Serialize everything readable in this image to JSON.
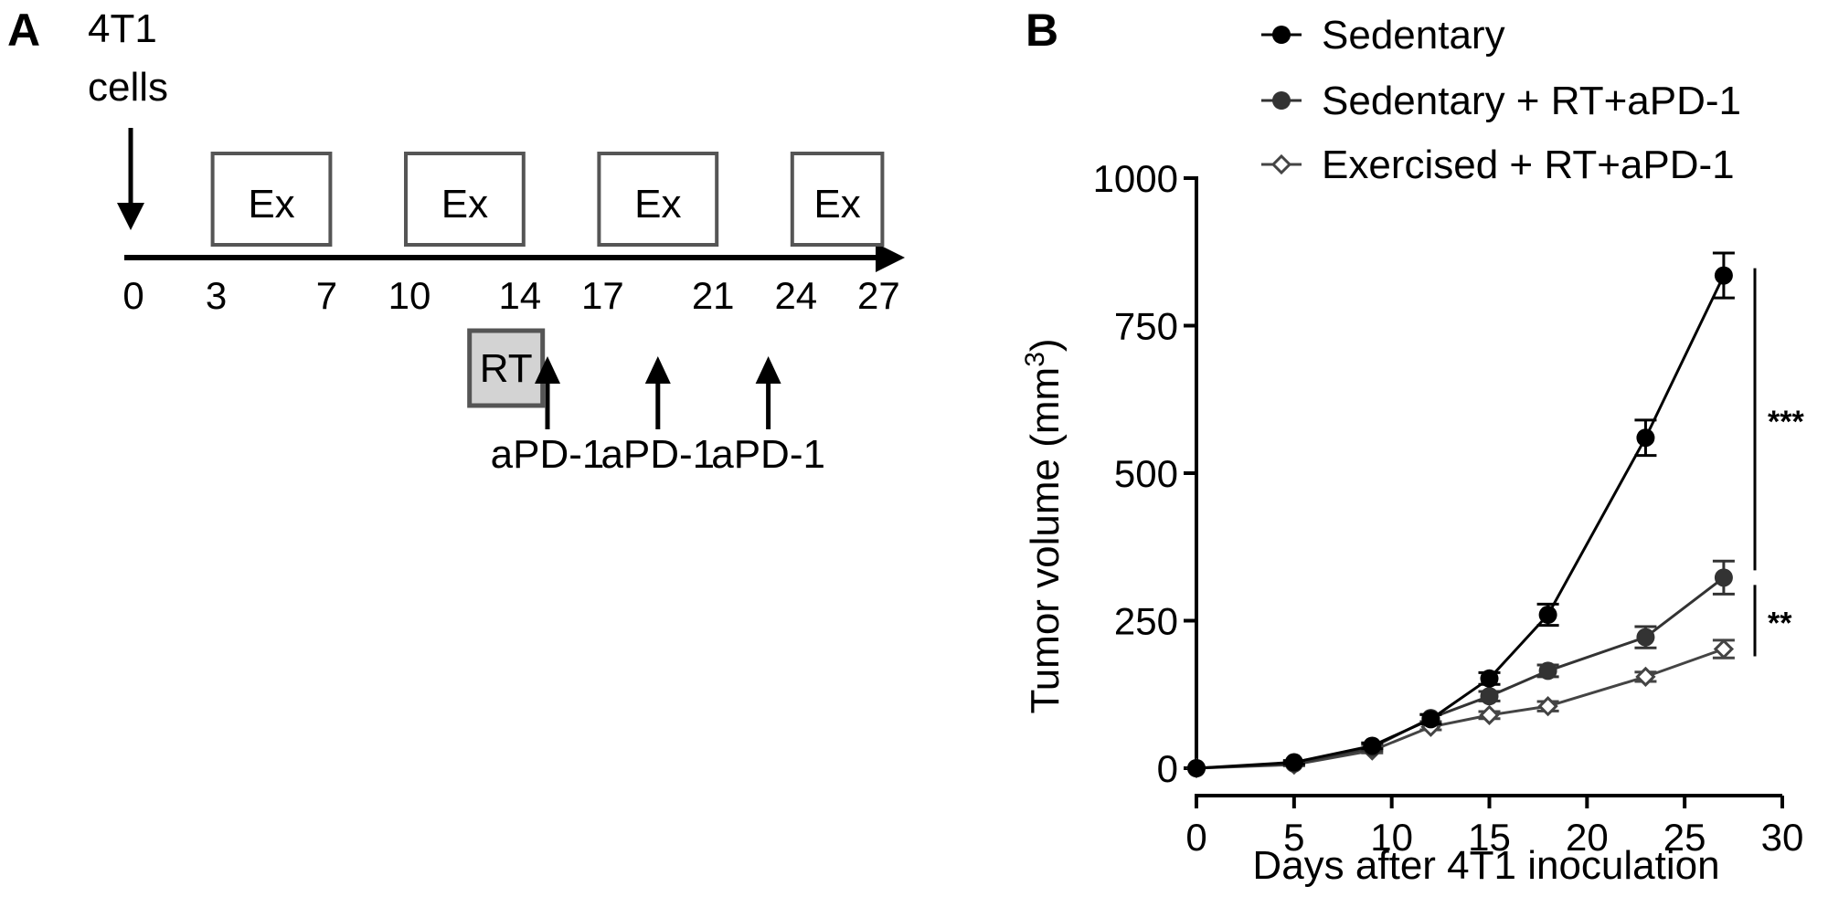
{
  "panel_a": {
    "label": "A",
    "cells_label": [
      "4T1",
      "cells"
    ],
    "exercise_label": "Ex",
    "exercise_blocks": [
      [
        3,
        7
      ],
      [
        10,
        14
      ],
      [
        17,
        21
      ],
      [
        24,
        27
      ]
    ],
    "timeline_ticks": [
      0,
      3,
      7,
      10,
      14,
      17,
      21,
      24,
      27
    ],
    "rt_label": "RT",
    "rt_day": 13.5,
    "apd1_label": "aPD-1",
    "apd1_days": [
      15,
      19,
      23
    ]
  },
  "chart_data": {
    "panel_label": "B",
    "type": "line",
    "xlabel": "Days after 4T1 inoculation",
    "ylabel": "Tumor volume (mm",
    "ylabel_superscript": "3",
    "ylabel_close": ")",
    "xlim": [
      0,
      30
    ],
    "ylim": [
      0,
      1000
    ],
    "xticks": [
      0,
      5,
      10,
      15,
      20,
      25,
      30
    ],
    "yticks": [
      0,
      250,
      500,
      750,
      1000
    ],
    "legend_position": "top",
    "x": [
      0,
      5,
      9,
      12,
      15,
      18,
      23,
      27
    ],
    "series": [
      {
        "name": "Sedentary",
        "marker": "filled-circle",
        "color": "#000000",
        "values": [
          0,
          10,
          38,
          83,
          152,
          260,
          560,
          835
        ],
        "errors": [
          0,
          3,
          5,
          8,
          10,
          18,
          30,
          38
        ]
      },
      {
        "name": "Sedentary + RT+aPD-1",
        "marker": "filled-circle",
        "color": "#333333",
        "values": [
          0,
          8,
          35,
          85,
          122,
          165,
          222,
          323
        ],
        "errors": [
          0,
          3,
          5,
          6,
          8,
          10,
          18,
          28
        ]
      },
      {
        "name": "Exercised + RT+aPD-1",
        "marker": "open-diamond",
        "color": "#444444",
        "values": [
          0,
          6,
          30,
          70,
          90,
          105,
          155,
          202
        ],
        "errors": [
          0,
          2,
          4,
          5,
          6,
          8,
          8,
          15
        ]
      }
    ],
    "significance": [
      {
        "label": "***",
        "from_value": 835,
        "to_value": 323
      },
      {
        "label": "**",
        "from_value": 323,
        "to_value": 202
      }
    ]
  }
}
